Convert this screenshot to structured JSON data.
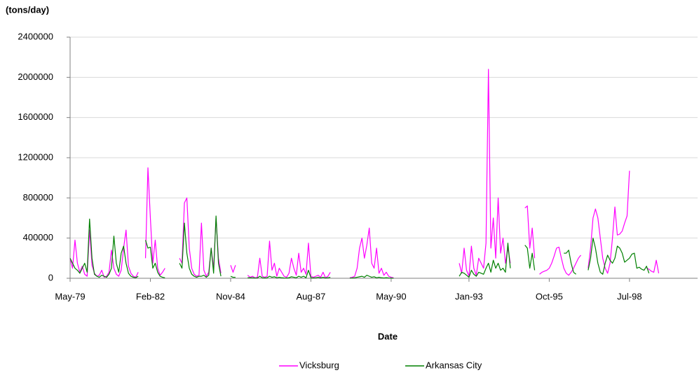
{
  "chart_data": {
    "type": "line",
    "y_label": "(tons/day)",
    "x_label": "Date",
    "x": [
      "May-79",
      "Jun-79",
      "Jul-79",
      "Aug-79",
      "Sep-79",
      "Oct-79",
      "Nov-79",
      "Dec-79",
      "Jan-80",
      "Feb-80",
      "Mar-80",
      "Apr-80",
      "May-80",
      "Jun-80",
      "Jul-80",
      "Aug-80",
      "Sep-80",
      "Oct-80",
      "Nov-80",
      "Dec-80",
      "Jan-81",
      "Feb-81",
      "Mar-81",
      "Apr-81",
      "May-81",
      "Jun-81",
      "Jul-81",
      "Aug-81",
      "Sep-81",
      "Oct-81",
      "Nov-81",
      "Dec-81",
      "Jan-82",
      "Feb-82",
      "Mar-82",
      "Apr-82",
      "May-82",
      "Jun-82",
      "Jul-82",
      "Aug-82",
      "Sep-82",
      "Oct-82",
      "Nov-82",
      "Dec-82",
      "Jan-83",
      "Feb-83",
      "Mar-83",
      "Apr-83",
      "May-83",
      "Jun-83",
      "Jul-83",
      "Aug-83",
      "Sep-83",
      "Oct-83",
      "Nov-83",
      "Dec-83",
      "Jan-84",
      "Feb-84",
      "Mar-84",
      "Apr-84",
      "May-84",
      "Jun-84",
      "Jul-84",
      "Aug-84",
      "Sep-84",
      "Oct-84",
      "Nov-84",
      "Dec-84",
      "Jan-85",
      "Feb-85",
      "Mar-85",
      "Apr-85",
      "May-85",
      "Jun-85",
      "Jul-85",
      "Aug-85",
      "Sep-85",
      "Oct-85",
      "Nov-85",
      "Dec-85",
      "Jan-86",
      "Feb-86",
      "Mar-86",
      "Apr-86",
      "May-86",
      "Jun-86",
      "Jul-86",
      "Aug-86",
      "Sep-86",
      "Oct-86",
      "Nov-86",
      "Dec-86",
      "Jan-87",
      "Feb-87",
      "Mar-87",
      "Apr-87",
      "May-87",
      "Jun-87",
      "Jul-87",
      "Aug-87",
      "Sep-87",
      "Oct-87",
      "Nov-87",
      "Dec-87",
      "Jan-88",
      "Feb-88",
      "Mar-88",
      "Apr-88",
      "May-88",
      "Jun-88",
      "Jul-88",
      "Aug-88",
      "Sep-88",
      "Oct-88",
      "Nov-88",
      "Dec-88",
      "Jan-89",
      "Feb-89",
      "Mar-89",
      "Apr-89",
      "May-89",
      "Jun-89",
      "Jul-89",
      "Aug-89",
      "Sep-89",
      "Oct-89",
      "Nov-89",
      "Dec-89",
      "Jan-90",
      "Feb-90",
      "Mar-90",
      "Apr-90",
      "May-90",
      "Jun-90",
      "Jul-90",
      "Aug-90",
      "Sep-90",
      "Oct-90",
      "Nov-90",
      "Dec-90",
      "Jan-91",
      "Feb-91",
      "Mar-91",
      "Apr-91",
      "May-91",
      "Jun-91",
      "Jul-91",
      "Aug-91",
      "Sep-91",
      "Oct-91",
      "Nov-91",
      "Dec-91",
      "Jan-92",
      "Feb-92",
      "Mar-92",
      "Apr-92",
      "May-92",
      "Jun-92",
      "Jul-92",
      "Aug-92",
      "Sep-92",
      "Oct-92",
      "Nov-92",
      "Dec-92",
      "Jan-93",
      "Feb-93",
      "Mar-93",
      "Apr-93",
      "May-93",
      "Jun-93",
      "Jul-93",
      "Aug-93",
      "Sep-93",
      "Oct-93",
      "Nov-93",
      "Dec-93",
      "Jan-94",
      "Feb-94",
      "Mar-94",
      "Apr-94",
      "May-94",
      "Jun-94",
      "Jul-94",
      "Aug-94",
      "Sep-94",
      "Oct-94",
      "Nov-94",
      "Dec-94",
      "Jan-95",
      "Feb-95",
      "Mar-95",
      "Apr-95",
      "May-95",
      "Jun-95",
      "Jul-95",
      "Aug-95",
      "Sep-95",
      "Oct-95",
      "Nov-95",
      "Dec-95",
      "Jan-96",
      "Feb-96",
      "Mar-96",
      "Apr-96",
      "May-96",
      "Jun-96",
      "Jul-96",
      "Aug-96",
      "Sep-96",
      "Oct-96",
      "Nov-96",
      "Dec-96",
      "Jan-97",
      "Feb-97",
      "Mar-97",
      "Apr-97",
      "May-97",
      "Jun-97",
      "Jul-97",
      "Aug-97",
      "Sep-97",
      "Oct-97",
      "Nov-97",
      "Dec-97",
      "Jan-98",
      "Feb-98",
      "Mar-98",
      "Apr-98",
      "May-98",
      "Jun-98",
      "Jul-98",
      "Aug-98",
      "Sep-98",
      "Oct-98",
      "Nov-98",
      "Dec-98",
      "Jan-99",
      "Feb-99",
      "Mar-99",
      "Apr-99",
      "May-99",
      "Jun-99",
      "Jul-99",
      "Aug-99",
      "Sep-99",
      "Oct-99"
    ],
    "series": [
      {
        "name": "Vicksburg",
        "color": "#ff00ff",
        "values": [
          200000,
          100000,
          380000,
          150000,
          60000,
          120000,
          40000,
          20000,
          480000,
          130000,
          50000,
          20000,
          30000,
          80000,
          10000,
          20000,
          60000,
          280000,
          100000,
          40000,
          20000,
          80000,
          300000,
          480000,
          120000,
          50000,
          20000,
          10000,
          60000,
          null,
          null,
          200000,
          1100000,
          600000,
          150000,
          380000,
          100000,
          30000,
          60000,
          100000,
          null,
          null,
          null,
          null,
          null,
          200000,
          150000,
          750000,
          800000,
          300000,
          100000,
          40000,
          20000,
          30000,
          550000,
          80000,
          20000,
          60000,
          300000,
          100000,
          600000,
          200000,
          50000,
          null,
          null,
          null,
          130000,
          60000,
          130000,
          null,
          null,
          null,
          null,
          30000,
          10000,
          20000,
          5000,
          10000,
          200000,
          20000,
          10000,
          20000,
          370000,
          80000,
          150000,
          20000,
          100000,
          60000,
          20000,
          10000,
          50000,
          200000,
          100000,
          30000,
          250000,
          60000,
          100000,
          40000,
          350000,
          20000,
          10000,
          20000,
          30000,
          10000,
          60000,
          5000,
          20000,
          60000,
          null,
          null,
          null,
          null,
          null,
          null,
          null,
          5000,
          10000,
          20000,
          100000,
          300000,
          400000,
          200000,
          330000,
          500000,
          150000,
          100000,
          300000,
          50000,
          100000,
          30000,
          60000,
          20000,
          10000,
          5000,
          null,
          null,
          null,
          null,
          null,
          null,
          null,
          null,
          null,
          null,
          null,
          null,
          null,
          null,
          null,
          null,
          null,
          null,
          null,
          null,
          null,
          null,
          null,
          null,
          null,
          null,
          150000,
          50000,
          300000,
          80000,
          20000,
          320000,
          100000,
          30000,
          200000,
          150000,
          100000,
          350000,
          2080000,
          300000,
          600000,
          200000,
          800000,
          250000,
          400000,
          150000,
          300000,
          150000,
          null,
          null,
          null,
          null,
          null,
          700000,
          720000,
          300000,
          500000,
          200000,
          null,
          40000,
          60000,
          70000,
          80000,
          100000,
          150000,
          220000,
          300000,
          310000,
          200000,
          100000,
          50000,
          30000,
          60000,
          100000,
          150000,
          200000,
          230000,
          null,
          null,
          100000,
          300000,
          600000,
          690000,
          600000,
          400000,
          200000,
          100000,
          50000,
          150000,
          400000,
          710000,
          430000,
          440000,
          470000,
          550000,
          620000,
          1070000,
          null,
          null,
          null,
          null,
          null,
          null,
          100000,
          90000,
          70000,
          60000,
          180000,
          50000,
          null,
          null,
          null
        ]
      },
      {
        "name": "Arkansas City",
        "color": "#008000",
        "values": [
          200000,
          150000,
          100000,
          80000,
          50000,
          100000,
          150000,
          60000,
          590000,
          200000,
          40000,
          20000,
          10000,
          30000,
          20000,
          10000,
          40000,
          100000,
          420000,
          150000,
          60000,
          250000,
          320000,
          150000,
          50000,
          20000,
          10000,
          5000,
          20000,
          null,
          null,
          380000,
          300000,
          310000,
          100000,
          150000,
          60000,
          20000,
          10000,
          5000,
          null,
          null,
          null,
          null,
          null,
          150000,
          100000,
          550000,
          250000,
          100000,
          40000,
          20000,
          10000,
          20000,
          20000,
          30000,
          10000,
          30000,
          300000,
          50000,
          620000,
          150000,
          20000,
          null,
          null,
          null,
          20000,
          10000,
          10000,
          null,
          null,
          null,
          null,
          5000,
          5000,
          5000,
          2000,
          3000,
          20000,
          5000,
          3000,
          5000,
          20000,
          10000,
          15000,
          5000,
          10000,
          5000,
          3000,
          2000,
          5000,
          15000,
          10000,
          5000,
          20000,
          10000,
          20000,
          5000,
          80000,
          5000,
          3000,
          5000,
          10000,
          3000,
          10000,
          2000,
          5000,
          10000,
          null,
          null,
          null,
          null,
          null,
          null,
          null,
          2000,
          3000,
          5000,
          10000,
          15000,
          20000,
          10000,
          30000,
          20000,
          10000,
          15000,
          5000,
          10000,
          5000,
          3000,
          5000,
          3000,
          2000,
          1000,
          null,
          null,
          null,
          null,
          null,
          null,
          null,
          null,
          null,
          null,
          null,
          null,
          null,
          null,
          null,
          null,
          null,
          null,
          null,
          null,
          null,
          null,
          null,
          null,
          null,
          null,
          20000,
          60000,
          50000,
          30000,
          10000,
          80000,
          40000,
          20000,
          60000,
          50000,
          40000,
          100000,
          150000,
          60000,
          180000,
          100000,
          150000,
          80000,
          100000,
          60000,
          350000,
          100000,
          null,
          null,
          null,
          null,
          null,
          330000,
          300000,
          100000,
          250000,
          80000,
          null,
          null,
          null,
          null,
          null,
          null,
          null,
          null,
          null,
          null,
          null,
          250000,
          250000,
          280000,
          150000,
          60000,
          40000,
          null,
          null,
          null,
          null,
          80000,
          200000,
          400000,
          300000,
          150000,
          60000,
          40000,
          150000,
          230000,
          180000,
          150000,
          200000,
          320000,
          300000,
          250000,
          160000,
          180000,
          200000,
          240000,
          250000,
          100000,
          110000,
          90000,
          80000,
          120000,
          50000,
          null,
          null,
          null,
          null,
          null,
          null,
          null
        ]
      }
    ],
    "xlim": [
      "May-79",
      "Nov-00"
    ],
    "xticks": [
      "May-79",
      "Feb-82",
      "Nov-84",
      "Aug-87",
      "May-90",
      "Jan-93",
      "Oct-95",
      "Jul-98"
    ],
    "ylim": [
      0,
      2400000
    ],
    "yticks": [
      0,
      400000,
      800000,
      1200000,
      1600000,
      2000000,
      2400000
    ],
    "grid": true,
    "legend": "bottom"
  }
}
